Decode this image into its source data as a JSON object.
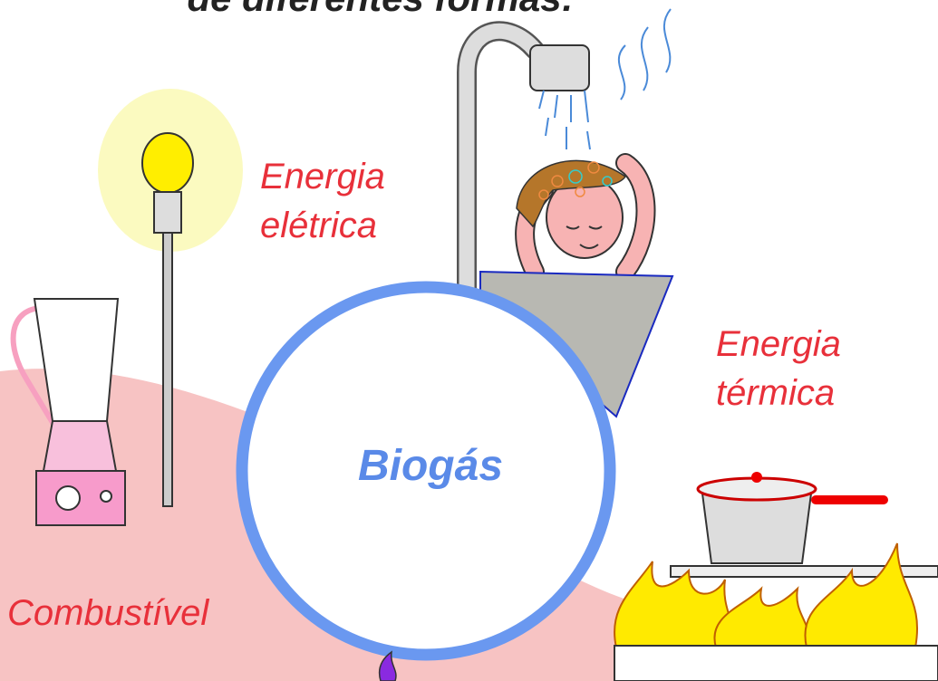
{
  "heading": "de diferentes formas:",
  "center": "Biogás",
  "uses": {
    "electric": [
      "Energia",
      "elétrica"
    ],
    "thermal": [
      "Energia",
      "térmica"
    ],
    "fuel": "Combustível"
  }
}
